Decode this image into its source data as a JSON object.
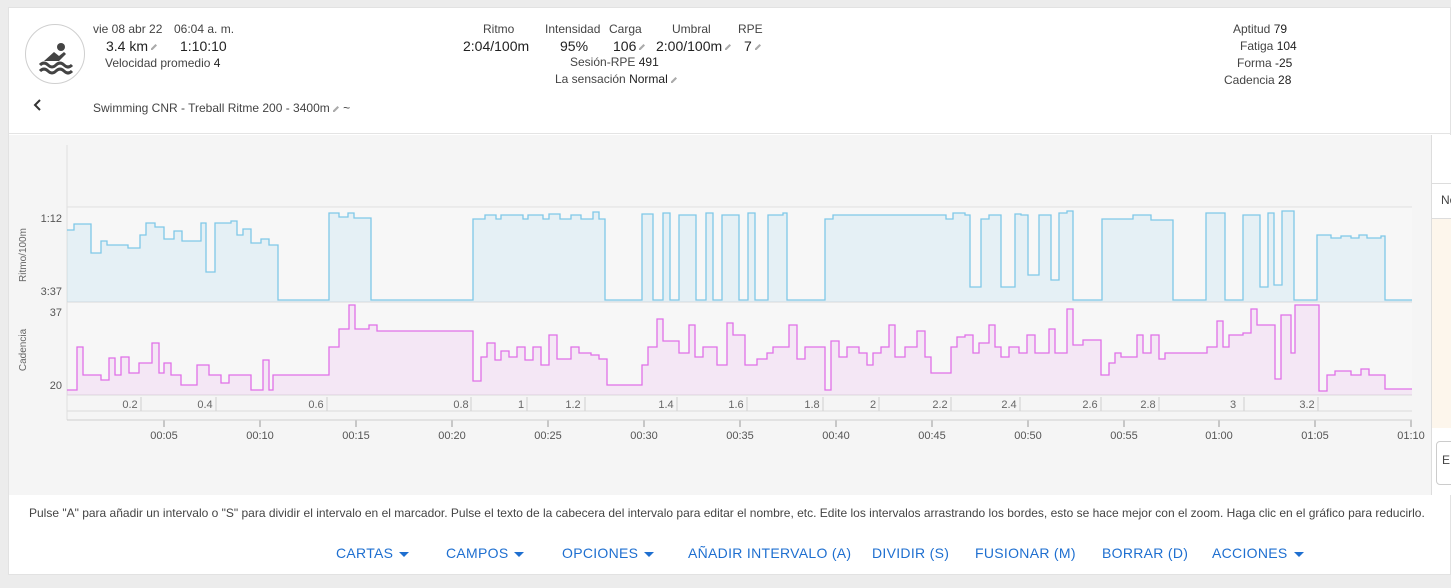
{
  "activity": {
    "date": "vie 08 abr 22",
    "time": "06:04 a. m.",
    "distance": "3.4 km",
    "duration": "1:10:10",
    "avg_speed_label": "Velocidad promedio",
    "avg_speed_value": "4",
    "name": "Swimming CNR - Treball Ritme 200 - 3400m",
    "name_suffix": "~"
  },
  "metrics": {
    "pace_label": "Ritmo",
    "pace_value": "2:04/100m",
    "intensity_label": "Intensidad",
    "intensity_value": "95%",
    "load_label": "Carga",
    "load_value": "106",
    "threshold_label": "Umbral",
    "threshold_value": "2:00/100m",
    "rpe_label": "RPE",
    "rpe_value": "7",
    "session_rpe_label": "Sesión-RPE",
    "session_rpe_value": "491",
    "feel_label": "La sensación",
    "feel_value": "Normal"
  },
  "fitness": {
    "fitness_label": "Aptitud",
    "fitness_value": "79",
    "fatigue_label": "Fatiga",
    "fatigue_value": "104",
    "form_label": "Forma",
    "form_value": "-25",
    "cadence_label": "Cadencia",
    "cadence_value": "28"
  },
  "chart": {
    "pace_axis_label": "Ritmo/100m",
    "pace_ticks": [
      "1:12",
      "3:37"
    ],
    "cadence_axis_label": "Cadencia",
    "cadence_ticks": [
      "37",
      "20"
    ],
    "distance_marks": [
      "0.2",
      "0.4",
      "0.6",
      "0.8",
      "1",
      "1.2",
      "1.4",
      "1.6",
      "1.8",
      "2",
      "2.2",
      "2.4",
      "2.6",
      "2.8",
      "3",
      "3.2"
    ],
    "time_ticks": [
      "00:05",
      "00:10",
      "00:15",
      "00:20",
      "00:25",
      "00:30",
      "00:35",
      "00:40",
      "00:45",
      "00:50",
      "00:55",
      "01:00",
      "01:05",
      "01:10"
    ],
    "pace_color": "#7fc8e8",
    "cadence_color": "#e070e8",
    "panel_letters": [
      "No",
      "E"
    ]
  },
  "help_text": "Pulse \"A\" para añadir un intervalo o \"S\" para dividir el intervalo en el marcador. Pulse el texto de la cabecera del intervalo para editar el nombre, etc. Edite los intervalos arrastrando los bordes, esto se hace mejor con el zoom. Haga clic en el gráfico para reducirlo.",
  "menu": {
    "charts": "CARTAS",
    "fields": "CAMPOS",
    "options": "OPCIONES",
    "add_interval": "AÑADIR INTERVALO (A)",
    "split": "DIVIDIR (S)",
    "merge": "FUSIONAR (M)",
    "delete": "BORRAR (D)",
    "actions": "ACCIONES"
  }
}
